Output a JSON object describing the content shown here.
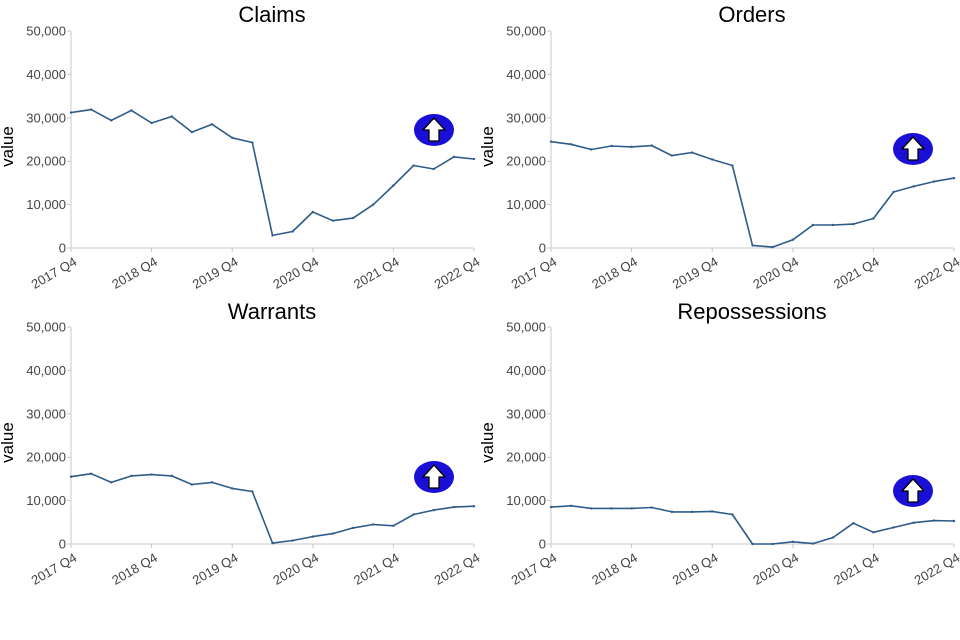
{
  "chart_data": [
    {
      "type": "line",
      "title": "Claims",
      "ylabel": "value",
      "xlabel": "",
      "ylim": [
        0,
        50000
      ],
      "y_ticks": [
        "0",
        "10,000",
        "20,000",
        "30,000",
        "40,000",
        "50,000"
      ],
      "x_ticks": [
        "2017 Q4",
        "2018 Q4",
        "2019 Q4",
        "2020 Q4",
        "2021 Q4",
        "2022 Q4"
      ],
      "x": [
        "2017 Q4",
        "2018 Q1",
        "2018 Q2",
        "2018 Q3",
        "2018 Q4",
        "2019 Q1",
        "2019 Q2",
        "2019 Q3",
        "2019 Q4",
        "2020 Q1",
        "2020 Q2",
        "2020 Q3",
        "2020 Q4",
        "2021 Q1",
        "2021 Q2",
        "2021 Q3",
        "2021 Q4",
        "2022 Q1",
        "2022 Q2",
        "2022 Q3",
        "2022 Q4"
      ],
      "values": [
        31200,
        31900,
        29400,
        31700,
        28800,
        30300,
        26700,
        28500,
        25400,
        24300,
        2900,
        3800,
        8300,
        6300,
        6900,
        10000,
        14400,
        19000,
        18200,
        21000,
        20500
      ],
      "trend_icon": "up-arrow-icon"
    },
    {
      "type": "line",
      "title": "Orders",
      "ylabel": "value",
      "xlabel": "",
      "ylim": [
        0,
        50000
      ],
      "y_ticks": [
        "0",
        "10,000",
        "20,000",
        "30,000",
        "40,000",
        "50,000"
      ],
      "x_ticks": [
        "2017 Q4",
        "2018 Q4",
        "2019 Q4",
        "2020 Q4",
        "2021 Q4",
        "2022 Q4"
      ],
      "x": [
        "2017 Q4",
        "2018 Q1",
        "2018 Q2",
        "2018 Q3",
        "2018 Q4",
        "2019 Q1",
        "2019 Q2",
        "2019 Q3",
        "2019 Q4",
        "2020 Q1",
        "2020 Q2",
        "2020 Q3",
        "2020 Q4",
        "2021 Q1",
        "2021 Q2",
        "2021 Q3",
        "2021 Q4",
        "2022 Q1",
        "2022 Q2",
        "2022 Q3",
        "2022 Q4"
      ],
      "values": [
        24500,
        23900,
        22700,
        23500,
        23300,
        23600,
        21300,
        22000,
        20400,
        19000,
        600,
        200,
        1900,
        5300,
        5300,
        5500,
        6800,
        12900,
        14200,
        15300,
        16100
      ],
      "trend_icon": "up-arrow-icon"
    },
    {
      "type": "line",
      "title": "Warrants",
      "ylabel": "value",
      "xlabel": "",
      "ylim": [
        0,
        50000
      ],
      "y_ticks": [
        "0",
        "10,000",
        "20,000",
        "30,000",
        "40,000",
        "50,000"
      ],
      "x_ticks": [
        "2017 Q4",
        "2018 Q4",
        "2019 Q4",
        "2020 Q4",
        "2021 Q4",
        "2022 Q4"
      ],
      "x": [
        "2017 Q4",
        "2018 Q1",
        "2018 Q2",
        "2018 Q3",
        "2018 Q4",
        "2019 Q1",
        "2019 Q2",
        "2019 Q3",
        "2019 Q4",
        "2020 Q1",
        "2020 Q2",
        "2020 Q3",
        "2020 Q4",
        "2021 Q1",
        "2021 Q2",
        "2021 Q3",
        "2021 Q4",
        "2022 Q1",
        "2022 Q2",
        "2022 Q3",
        "2022 Q4"
      ],
      "values": [
        15500,
        16200,
        14200,
        15700,
        16000,
        15700,
        13700,
        14200,
        12800,
        12100,
        200,
        800,
        1700,
        2400,
        3700,
        4500,
        4200,
        6800,
        7800,
        8500,
        8700
      ],
      "trend_icon": "up-arrow-icon"
    },
    {
      "type": "line",
      "title": "Repossessions",
      "ylabel": "value",
      "xlabel": "",
      "ylim": [
        0,
        50000
      ],
      "y_ticks": [
        "0",
        "10,000",
        "20,000",
        "30,000",
        "40,000",
        "50,000"
      ],
      "x_ticks": [
        "2017 Q4",
        "2018 Q4",
        "2019 Q4",
        "2020 Q4",
        "2021 Q4",
        "2022 Q4"
      ],
      "x": [
        "2017 Q4",
        "2018 Q1",
        "2018 Q2",
        "2018 Q3",
        "2018 Q4",
        "2019 Q1",
        "2019 Q2",
        "2019 Q3",
        "2019 Q4",
        "2020 Q1",
        "2020 Q2",
        "2020 Q3",
        "2020 Q4",
        "2021 Q1",
        "2021 Q2",
        "2021 Q3",
        "2021 Q4",
        "2022 Q1",
        "2022 Q2",
        "2022 Q3",
        "2022 Q4"
      ],
      "values": [
        8500,
        8800,
        8200,
        8200,
        8200,
        8400,
        7400,
        7400,
        7500,
        6800,
        0,
        0,
        500,
        100,
        1500,
        4800,
        2700,
        3800,
        4900,
        5400,
        5300
      ],
      "trend_icon": "up-arrow-icon"
    }
  ],
  "colors": {
    "line": "#2e5c8a",
    "axis": "#c8c8c8",
    "icon_fill": "#1a0fd6",
    "icon_arrow": "#ffffff"
  }
}
